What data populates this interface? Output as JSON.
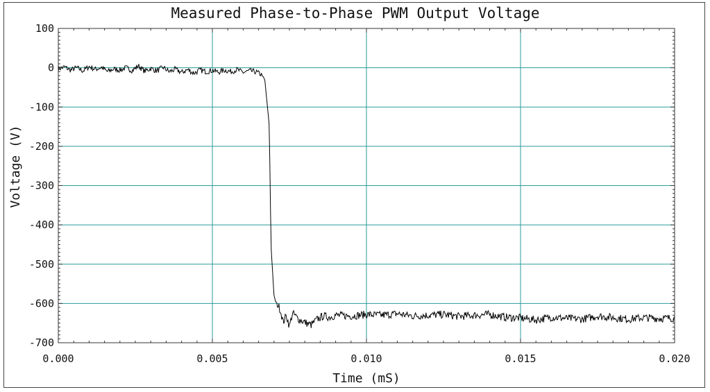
{
  "chart_data": {
    "type": "line",
    "title": "Measured Phase-to-Phase PWM Output Voltage",
    "xlabel": "Time (mS)",
    "ylabel": "Voltage (V)",
    "xlim": [
      0.0,
      0.02
    ],
    "ylim": [
      -700,
      100
    ],
    "xticks": [
      "0.000",
      "0.005",
      "0.010",
      "0.015",
      "0.020"
    ],
    "xtick_values": [
      0.0,
      0.005,
      0.01,
      0.015,
      0.02
    ],
    "yticks": [
      "100",
      "0",
      "-100",
      "-200",
      "-300",
      "-400",
      "-500",
      "-600",
      "-700"
    ],
    "ytick_values": [
      100,
      0,
      -100,
      -200,
      -300,
      -400,
      -500,
      -600,
      -700
    ],
    "grid": true,
    "series": [
      {
        "color": "#000000",
        "points": [
          [
            0.0,
            -3
          ],
          [
            0.0002,
            2
          ],
          [
            0.0004,
            -6
          ],
          [
            0.0006,
            0
          ],
          [
            0.0008,
            -8
          ],
          [
            0.001,
            3
          ],
          [
            0.0012,
            -4
          ],
          [
            0.0014,
            1
          ],
          [
            0.0016,
            -10
          ],
          [
            0.0018,
            -3
          ],
          [
            0.002,
            -6
          ],
          [
            0.0022,
            0
          ],
          [
            0.0024,
            -7
          ],
          [
            0.0026,
            5
          ],
          [
            0.0028,
            -9
          ],
          [
            0.003,
            -2
          ],
          [
            0.0032,
            -8
          ],
          [
            0.0034,
            1
          ],
          [
            0.0036,
            -10
          ],
          [
            0.0038,
            -4
          ],
          [
            0.004,
            -12
          ],
          [
            0.0042,
            -5
          ],
          [
            0.0044,
            -14
          ],
          [
            0.0046,
            -6
          ],
          [
            0.0048,
            -10
          ],
          [
            0.005,
            -7
          ],
          [
            0.0052,
            -11
          ],
          [
            0.0054,
            -6
          ],
          [
            0.0056,
            -10
          ],
          [
            0.0058,
            -5
          ],
          [
            0.006,
            -12
          ],
          [
            0.0062,
            -8
          ],
          [
            0.0064,
            -10
          ],
          [
            0.0066,
            -18
          ],
          [
            0.0067,
            -30
          ],
          [
            0.00685,
            -150
          ],
          [
            0.0069,
            -450
          ],
          [
            0.007,
            -580
          ],
          [
            0.00705,
            -595
          ],
          [
            0.0071,
            -600
          ],
          [
            0.0072,
            -615
          ],
          [
            0.0073,
            -648
          ],
          [
            0.0074,
            -630
          ],
          [
            0.0075,
            -658
          ],
          [
            0.0076,
            -625
          ],
          [
            0.0078,
            -640
          ],
          [
            0.008,
            -648
          ],
          [
            0.0082,
            -655
          ],
          [
            0.0084,
            -640
          ],
          [
            0.0086,
            -632
          ],
          [
            0.0088,
            -635
          ],
          [
            0.009,
            -630
          ],
          [
            0.0095,
            -632
          ],
          [
            0.01,
            -628
          ],
          [
            0.0105,
            -630
          ],
          [
            0.011,
            -626
          ],
          [
            0.0115,
            -632
          ],
          [
            0.012,
            -630
          ],
          [
            0.0125,
            -628
          ],
          [
            0.013,
            -633
          ],
          [
            0.0135,
            -630
          ],
          [
            0.014,
            -628
          ],
          [
            0.0145,
            -635
          ],
          [
            0.015,
            -637
          ],
          [
            0.0155,
            -642
          ],
          [
            0.016,
            -635
          ],
          [
            0.0165,
            -638
          ],
          [
            0.017,
            -640
          ],
          [
            0.0175,
            -632
          ],
          [
            0.018,
            -636
          ],
          [
            0.0185,
            -640
          ],
          [
            0.019,
            -636
          ],
          [
            0.0195,
            -638
          ],
          [
            0.02,
            -637
          ]
        ]
      }
    ]
  }
}
